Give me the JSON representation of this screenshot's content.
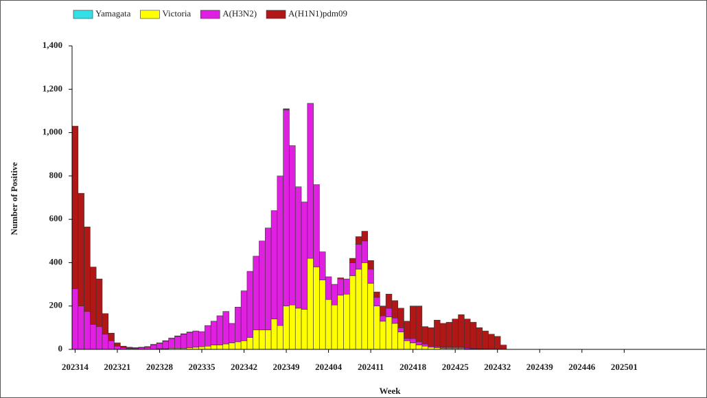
{
  "chart_data": {
    "type": "stacked_bar",
    "x_label": "Week",
    "y_label": "Number of Positive",
    "categories": [
      "202314",
      null,
      null,
      null,
      null,
      null,
      null,
      "202321",
      null,
      null,
      null,
      null,
      null,
      null,
      "202328",
      null,
      null,
      null,
      null,
      null,
      null,
      "202335",
      null,
      null,
      null,
      null,
      null,
      null,
      "202342",
      null,
      null,
      null,
      null,
      null,
      null,
      "202349",
      null,
      null,
      null,
      null,
      null,
      null,
      "202404",
      null,
      null,
      null,
      null,
      null,
      null,
      "202411",
      null,
      null,
      null,
      null,
      null,
      null,
      "202418",
      null,
      null,
      null,
      null,
      null,
      null,
      "202425",
      null,
      null,
      null,
      null,
      null,
      null,
      "202432",
      null,
      null,
      null,
      null,
      null,
      null,
      "202439",
      null,
      null,
      null,
      null,
      null,
      null,
      "202446",
      null,
      null,
      null,
      null,
      null,
      null,
      "202501",
      null,
      null,
      null,
      null,
      null,
      null,
      null,
      null,
      null,
      null,
      null,
      null,
      null
    ],
    "series": [
      {
        "name": "Yamagata",
        "color": "#33e0e8",
        "values": [
          0,
          0,
          0,
          0,
          0,
          0,
          0,
          0,
          0,
          0,
          0,
          0,
          0,
          0,
          0,
          0,
          0,
          0,
          0,
          0,
          0,
          0,
          0,
          0,
          0,
          0,
          0,
          0,
          0,
          0,
          0,
          0,
          0,
          0,
          0,
          0,
          0,
          0,
          0,
          0,
          0,
          0,
          0,
          0,
          0,
          0,
          0,
          0,
          0,
          0,
          0,
          0,
          0,
          0,
          0,
          0,
          0,
          0,
          0,
          0,
          0,
          0,
          0,
          0,
          0,
          0,
          0,
          0,
          0,
          0,
          0,
          0,
          null,
          null,
          null,
          null,
          null,
          null,
          null,
          null,
          null,
          null,
          null,
          null,
          null,
          null,
          null,
          null,
          null,
          null,
          null,
          null,
          null,
          null,
          null,
          null,
          null,
          null,
          null,
          null,
          null,
          null,
          null,
          null,
          null
        ]
      },
      {
        "name": "Victoria",
        "color": "#ffff00",
        "values": [
          0,
          0,
          0,
          0,
          0,
          0,
          0,
          0,
          0,
          0,
          0,
          0,
          0,
          0,
          3,
          3,
          5,
          5,
          5,
          8,
          10,
          12,
          15,
          20,
          20,
          25,
          30,
          35,
          40,
          55,
          90,
          90,
          90,
          140,
          110,
          200,
          205,
          190,
          185,
          420,
          380,
          320,
          230,
          205,
          250,
          255,
          340,
          370,
          400,
          305,
          200,
          130,
          150,
          120,
          80,
          40,
          30,
          20,
          15,
          10,
          8,
          5,
          5,
          5,
          5,
          3,
          2,
          0,
          0,
          0,
          0,
          0,
          null,
          null,
          null,
          null,
          null,
          null,
          null,
          null,
          null,
          null,
          null,
          null,
          null,
          null,
          null,
          null,
          null,
          null,
          null,
          null,
          null,
          null,
          null,
          null,
          null,
          null,
          null,
          null,
          null,
          null,
          null,
          null,
          null
        ]
      },
      {
        "name": "A(H3N2)",
        "color": "#e020e0",
        "values": [
          280,
          200,
          175,
          115,
          105,
          70,
          40,
          15,
          8,
          5,
          5,
          8,
          10,
          20,
          25,
          35,
          45,
          55,
          65,
          70,
          75,
          70,
          95,
          110,
          135,
          150,
          90,
          160,
          230,
          305,
          340,
          410,
          470,
          500,
          690,
          905,
          735,
          560,
          495,
          715,
          380,
          130,
          105,
          95,
          75,
          70,
          60,
          115,
          100,
          65,
          40,
          25,
          40,
          25,
          20,
          10,
          20,
          15,
          10,
          5,
          5,
          5,
          5,
          5,
          5,
          5,
          3,
          2,
          2,
          0,
          0,
          0,
          null,
          null,
          null,
          null,
          null,
          null,
          null,
          null,
          null,
          null,
          null,
          null,
          null,
          null,
          null,
          null,
          null,
          null,
          null,
          null,
          null,
          null,
          null,
          null,
          null,
          null,
          null,
          null,
          null,
          null,
          null,
          null,
          null
        ]
      },
      {
        "name": "A(H1N1)pdm09",
        "color": "#b01818",
        "values": [
          750,
          520,
          390,
          265,
          220,
          95,
          35,
          15,
          7,
          5,
          3,
          2,
          3,
          3,
          2,
          2,
          2,
          2,
          2,
          2,
          0,
          0,
          0,
          0,
          0,
          0,
          0,
          0,
          0,
          0,
          0,
          0,
          0,
          0,
          0,
          5,
          0,
          0,
          0,
          0,
          0,
          0,
          0,
          0,
          5,
          0,
          20,
          35,
          45,
          40,
          25,
          45,
          65,
          80,
          90,
          80,
          150,
          165,
          80,
          85,
          122,
          110,
          115,
          130,
          150,
          132,
          120,
          98,
          83,
          70,
          60,
          20,
          null,
          null,
          null,
          null,
          null,
          null,
          null,
          null,
          null,
          null,
          null,
          null,
          null,
          null,
          null,
          null,
          null,
          null,
          null,
          null,
          null,
          null,
          null,
          null,
          null,
          null,
          null,
          null,
          null,
          null,
          null,
          null,
          null
        ]
      }
    ],
    "ylim": [
      0,
      1400
    ],
    "yticks": [
      0,
      200,
      400,
      600,
      800,
      {
        "value": 1000,
        "label": "1,000"
      },
      {
        "value": 1200,
        "label": "1,200"
      },
      {
        "value": 1400,
        "label": "1,400"
      }
    ],
    "legend": "top-left"
  }
}
